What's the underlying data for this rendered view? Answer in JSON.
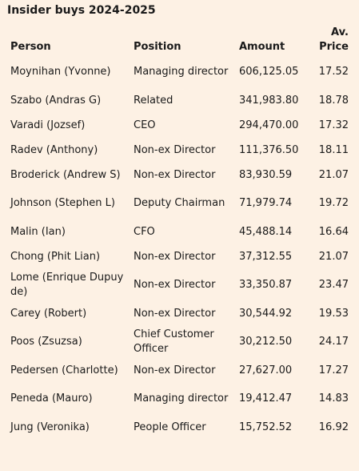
{
  "title": "Insider buys 2024-2025",
  "columns": {
    "person": "Person",
    "position": "Position",
    "amount": "Amount",
    "price": "Av. Price"
  },
  "rows": [
    {
      "person": "Moynihan (Yvonne)",
      "position": "Managing director",
      "amount": "606,125.05",
      "price": "17.52"
    },
    {
      "person": "Szabo (Andras G)",
      "position": "Related",
      "amount": "341,983.80",
      "price": "18.78"
    },
    {
      "person": "Varadi (Jozsef)",
      "position": "CEO",
      "amount": "294,470.00",
      "price": "17.32"
    },
    {
      "person": "Radev (Anthony)",
      "position": "Non-ex Director",
      "amount": "111,376.50",
      "price": "18.11"
    },
    {
      "person": "Broderick (Andrew S)",
      "position": "Non-ex Director",
      "amount": "83,930.59",
      "price": "21.07"
    },
    {
      "person": "Johnson (Stephen L)",
      "position": "Deputy Chairman",
      "amount": "71,979.74",
      "price": "19.72"
    },
    {
      "person": "Malin (Ian)",
      "position": "CFO",
      "amount": "45,488.14",
      "price": "16.64"
    },
    {
      "person": "Chong (Phit Lian)",
      "position": "Non-ex Director",
      "amount": "37,312.55",
      "price": "21.07"
    },
    {
      "person": "Lome (Enrique Dupuy de)",
      "position": "Non-ex Director",
      "amount": "33,350.87",
      "price": "23.47"
    },
    {
      "person": "Carey (Robert)",
      "position": "Non-ex Director",
      "amount": "30,544.92",
      "price": "19.53"
    },
    {
      "person": "Poos (Zsuzsa)",
      "position": "Chief Customer Officer",
      "amount": "30,212.50",
      "price": "24.17"
    },
    {
      "person": "Pedersen (Charlotte)",
      "position": "Non-ex Director",
      "amount": "27,627.00",
      "price": "17.27"
    },
    {
      "person": "Peneda (Mauro)",
      "position": "Managing director",
      "amount": "19,412.47",
      "price": "14.83"
    },
    {
      "person": "Jung (Veronika)",
      "position": "People Officer",
      "amount": "15,752.52",
      "price": "16.92"
    }
  ]
}
